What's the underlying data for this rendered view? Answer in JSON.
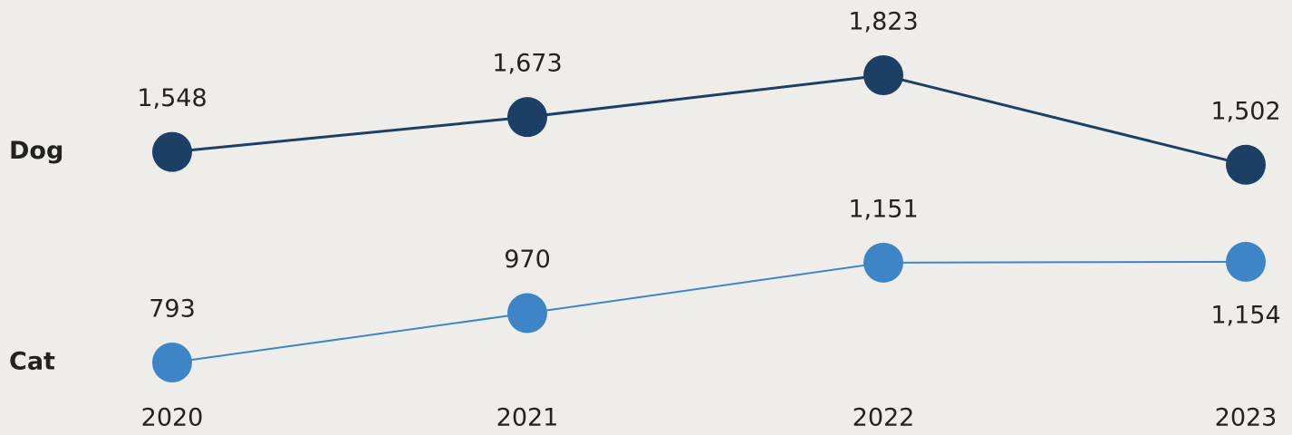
{
  "chart_data": {
    "type": "line",
    "categories": [
      "2020",
      "2021",
      "2022",
      "2023"
    ],
    "series": [
      {
        "name": "Dog",
        "color": "#1c3f66",
        "values": [
          1548,
          1673,
          1823,
          1502
        ],
        "value_labels": [
          "1,548",
          "1,673",
          "1,823",
          "1,502"
        ]
      },
      {
        "name": "Cat",
        "color": "#3d85c6",
        "values": [
          793,
          970,
          1151,
          1154
        ],
        "value_labels": [
          "793",
          "970",
          "1,151",
          "1,154"
        ]
      }
    ]
  }
}
